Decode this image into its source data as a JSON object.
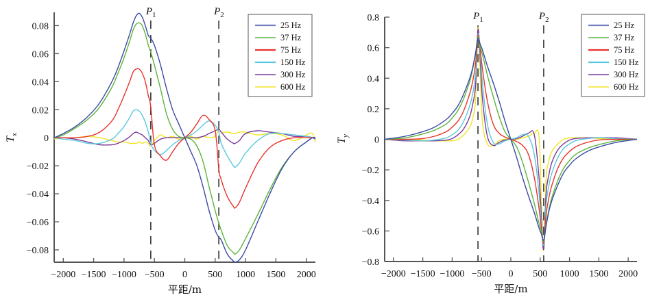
{
  "chart_data": [
    {
      "type": "line",
      "title": "",
      "xlabel": "平距/m",
      "ylabel": "T",
      "ylabel_sub": "x",
      "xlim": [
        -2150,
        2150
      ],
      "ylim": [
        -0.0888,
        0.0895
      ],
      "xticks": [
        -2000,
        -1500,
        -1000,
        -500,
        0,
        500,
        1000,
        1500,
        2000
      ],
      "xtick_labels": [
        "−2000",
        "−1500",
        "−1000",
        "−500",
        "0",
        "500",
        "1000",
        "1500",
        "2000"
      ],
      "yticks": [
        -0.08,
        -0.06,
        -0.04,
        -0.02,
        0,
        0.02,
        0.04,
        0.06,
        0.08
      ],
      "ytick_labels": [
        "−0.08",
        "−0.06",
        "−0.04",
        "−0.02",
        "0",
        "0.02",
        "0.04",
        "0.06",
        "0.08"
      ],
      "grid": false,
      "legend_position": "top-right",
      "markers": [
        {
          "label": "P",
          "sub": "1",
          "x": -560
        },
        {
          "label": "P",
          "sub": "2",
          "x": 560
        }
      ],
      "x": [
        -2150,
        -2000,
        -1800,
        -1600,
        -1400,
        -1200,
        -1100,
        -1000,
        -900,
        -850,
        -800,
        -750,
        -700,
        -650,
        -600,
        -560,
        -500,
        -400,
        -300,
        -200,
        -100,
        0,
        100,
        200,
        300,
        400,
        500,
        560,
        600,
        700,
        800,
        830,
        900,
        1000,
        1200,
        1400,
        1600,
        1800,
        2000,
        2100,
        2150
      ],
      "series": [
        {
          "name": "25 Hz",
          "color": "#3a49a6",
          "values": [
            0,
            0.003,
            0.008,
            0.015,
            0.025,
            0.04,
            0.05,
            0.062,
            0.075,
            0.082,
            0.087,
            0.0888,
            0.086,
            0.08,
            0.073,
            0.071,
            0.066,
            0.052,
            0.035,
            0.02,
            0.01,
            0,
            -0.01,
            -0.02,
            -0.035,
            -0.052,
            -0.066,
            -0.071,
            -0.073,
            -0.083,
            -0.088,
            -0.0888,
            -0.087,
            -0.08,
            -0.06,
            -0.04,
            -0.022,
            -0.01,
            -0.003,
            0,
            0
          ]
        },
        {
          "name": "37 Hz",
          "color": "#5cb33a",
          "values": [
            0,
            0.002,
            0.007,
            0.013,
            0.022,
            0.036,
            0.046,
            0.057,
            0.07,
            0.077,
            0.081,
            0.082,
            0.08,
            0.074,
            0.066,
            0.061,
            0.052,
            0.035,
            0.017,
            0.006,
            0.001,
            0,
            -0.001,
            -0.006,
            -0.017,
            -0.035,
            -0.052,
            -0.061,
            -0.066,
            -0.077,
            -0.082,
            -0.083,
            -0.08,
            -0.072,
            -0.055,
            -0.037,
            -0.021,
            -0.01,
            -0.003,
            0,
            0
          ]
        },
        {
          "name": "75 Hz",
          "color": "#e8322a",
          "values": [
            0,
            0,
            0,
            0.001,
            0.004,
            0.012,
            0.02,
            0.03,
            0.041,
            0.047,
            0.049,
            0.049,
            0.046,
            0.04,
            0.03,
            0.022,
            -0.005,
            -0.013,
            -0.016,
            -0.01,
            -0.004,
            0,
            0.004,
            0.01,
            0.016,
            0.013,
            0.005,
            -0.022,
            -0.03,
            -0.042,
            -0.049,
            -0.05,
            -0.046,
            -0.036,
            -0.018,
            -0.007,
            -0.002,
            0,
            0,
            0,
            0
          ]
        },
        {
          "name": "150 Hz",
          "color": "#5bc7df",
          "values": [
            0,
            -0.001,
            -0.002,
            -0.004,
            -0.004,
            -0.001,
            0.003,
            0.008,
            0.015,
            0.019,
            0.02,
            0.019,
            0.016,
            0.011,
            0.004,
            -0.004,
            -0.009,
            -0.012,
            -0.009,
            -0.005,
            -0.002,
            0,
            0.002,
            0.005,
            0.009,
            0.012,
            0.009,
            0.004,
            -0.004,
            -0.013,
            -0.02,
            -0.021,
            -0.018,
            -0.011,
            -0.002,
            0.003,
            0.003,
            0.002,
            0.001,
            0,
            0
          ]
        },
        {
          "name": "300 Hz",
          "color": "#7b3a99",
          "values": [
            0,
            0,
            -0.001,
            -0.003,
            -0.005,
            -0.005,
            -0.004,
            -0.002,
            0.001,
            0.003,
            0.004,
            0.003,
            0.002,
            0,
            -0.002,
            -0.005,
            -0.004,
            -0.001,
            0,
            0,
            0,
            0,
            0,
            0,
            0.001,
            0.003,
            0.005,
            0.006,
            0.004,
            -0.001,
            -0.004,
            -0.004,
            -0.002,
            0.003,
            0.005,
            0.004,
            0.003,
            0.001,
            0.001,
            0,
            -0.001
          ]
        },
        {
          "name": "600 Hz",
          "color": "#f1e420",
          "values": [
            -0.001,
            0,
            0,
            0.001,
            0,
            -0.002,
            -0.003,
            -0.003,
            -0.004,
            -0.004,
            -0.004,
            -0.003,
            -0.004,
            -0.003,
            -0.004,
            -0.006,
            -0.002,
            0.002,
            0,
            0.001,
            -0.001,
            0,
            0.001,
            -0.001,
            0.001,
            0,
            0.001,
            0.006,
            0.004,
            0.004,
            0.003,
            0.003,
            0.004,
            0.004,
            0.002,
            0.003,
            0.002,
            -0.002,
            0.002,
            0.003,
            -0.003
          ]
        }
      ]
    },
    {
      "type": "line",
      "title": "",
      "xlabel": "平距/m",
      "ylabel": "T",
      "ylabel_sub": "y",
      "xlim": [
        -2150,
        2150
      ],
      "ylim": [
        -0.8,
        0.8
      ],
      "xticks": [
        -2000,
        -1500,
        -1000,
        -500,
        0,
        500,
        1000,
        1500,
        2000
      ],
      "xtick_labels": [
        "−2000",
        "−1500",
        "−1000",
        "−500",
        "0",
        "500",
        "1000",
        "1500",
        "2000"
      ],
      "yticks": [
        -0.8,
        -0.6,
        -0.4,
        -0.2,
        0,
        0.2,
        0.4,
        0.6,
        0.8
      ],
      "ytick_labels": [
        "−0.8",
        "−0.6",
        "−0.4",
        "−0.2",
        "0",
        "0.2",
        "0.4",
        "0.6",
        "0.8"
      ],
      "grid": false,
      "legend_position": "top-right",
      "markers": [
        {
          "label": "P",
          "sub": "1",
          "x": -560
        },
        {
          "label": "P",
          "sub": "2",
          "x": 560
        }
      ],
      "x": [
        -2150,
        -1800,
        -1500,
        -1300,
        -1100,
        -1000,
        -900,
        -800,
        -700,
        -650,
        -600,
        -560,
        -520,
        -480,
        -400,
        -300,
        -200,
        -100,
        0,
        100,
        200,
        300,
        400,
        480,
        520,
        560,
        600,
        650,
        700,
        800,
        900,
        1000,
        1100,
        1300,
        1500,
        1800,
        2150
      ],
      "series": [
        {
          "name": "25 Hz",
          "color": "#3a49a6",
          "values": [
            0,
            0.02,
            0.05,
            0.08,
            0.13,
            0.17,
            0.22,
            0.3,
            0.4,
            0.47,
            0.57,
            0.66,
            0.62,
            0.58,
            0.48,
            0.37,
            0.25,
            0.12,
            0,
            -0.12,
            -0.25,
            -0.37,
            -0.48,
            -0.58,
            -0.62,
            -0.66,
            -0.57,
            -0.47,
            -0.4,
            -0.3,
            -0.22,
            -0.17,
            -0.13,
            -0.08,
            -0.05,
            -0.02,
            0
          ]
        },
        {
          "name": "37 Hz",
          "color": "#5cb33a",
          "values": [
            0,
            0.01,
            0.035,
            0.06,
            0.1,
            0.14,
            0.19,
            0.27,
            0.38,
            0.46,
            0.56,
            0.67,
            0.6,
            0.55,
            0.42,
            0.28,
            0.15,
            0.05,
            0,
            -0.05,
            -0.15,
            -0.28,
            -0.42,
            -0.55,
            -0.6,
            -0.67,
            -0.56,
            -0.46,
            -0.38,
            -0.27,
            -0.19,
            -0.14,
            -0.1,
            -0.06,
            -0.035,
            -0.01,
            0
          ]
        },
        {
          "name": "75 Hz",
          "color": "#e8322a",
          "values": [
            0,
            0,
            0.005,
            0.02,
            0.05,
            0.08,
            0.12,
            0.19,
            0.3,
            0.38,
            0.5,
            0.68,
            0.58,
            0.45,
            0.25,
            0.1,
            0.04,
            0.015,
            0,
            -0.015,
            -0.04,
            -0.1,
            -0.25,
            -0.45,
            -0.58,
            -0.68,
            -0.5,
            -0.38,
            -0.3,
            -0.19,
            -0.12,
            -0.08,
            -0.05,
            -0.02,
            -0.005,
            0,
            0
          ]
        },
        {
          "name": "150 Hz",
          "color": "#5bc7df",
          "values": [
            0,
            -0.005,
            -0.01,
            -0.005,
            0.01,
            0.03,
            0.06,
            0.12,
            0.22,
            0.3,
            0.43,
            0.69,
            0.55,
            0.35,
            0.1,
            -0.02,
            -0.03,
            -0.01,
            0,
            0.01,
            0.03,
            0.02,
            -0.1,
            -0.35,
            -0.55,
            -0.69,
            -0.43,
            -0.3,
            -0.22,
            -0.12,
            -0.06,
            -0.03,
            -0.01,
            0.005,
            0.01,
            0.005,
            0
          ]
        },
        {
          "name": "300 Hz",
          "color": "#7b3a99",
          "values": [
            0,
            -0.01,
            -0.01,
            -0.01,
            -0.005,
            0.005,
            0.03,
            0.07,
            0.15,
            0.23,
            0.36,
            0.72,
            0.5,
            0.25,
            0.02,
            -0.04,
            -0.02,
            -0.005,
            0,
            0.005,
            0.02,
            0.04,
            0.03,
            -0.25,
            -0.5,
            -0.72,
            -0.36,
            -0.23,
            -0.15,
            -0.07,
            -0.03,
            -0.005,
            0.005,
            0.01,
            0.01,
            0.01,
            0
          ]
        },
        {
          "name": "600 Hz",
          "color": "#f1e420",
          "values": [
            0,
            0,
            -0.005,
            -0.01,
            -0.01,
            -0.01,
            0,
            0.03,
            0.08,
            0.14,
            0.27,
            0.73,
            0.4,
            0.1,
            -0.03,
            -0.04,
            -0.01,
            0,
            0,
            0,
            0.01,
            0.02,
            0.04,
            0.02,
            -0.4,
            -0.73,
            -0.27,
            -0.14,
            -0.08,
            -0.03,
            0,
            0.01,
            0.01,
            0.01,
            0.005,
            0,
            0
          ]
        }
      ]
    }
  ]
}
